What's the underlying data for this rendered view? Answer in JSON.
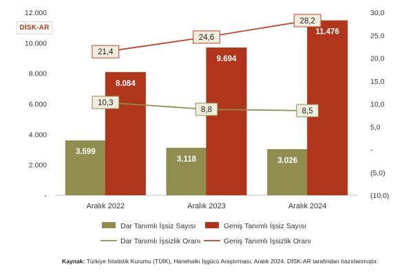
{
  "logo_text": "DİSK-AR",
  "source": {
    "label": "Kaynak:",
    "text": " Türkiye İstatistik Kurumu (TÜİK), Hanehalkı İşgücü Araştırması, Aralık 2024. DİSK-AR tarafından hazırlanmıştır."
  },
  "chart_data": {
    "type": "bar",
    "categories": [
      "Aralık 2022",
      "Aralık 2023",
      "Aralık 2024"
    ],
    "series": [
      {
        "name": "Dar Tanımlı İşsiz Sayısı",
        "type": "bar",
        "axis": "left",
        "color": "#8f8e4f",
        "values": [
          3599,
          3118,
          3026
        ],
        "labels": [
          "3.599",
          "3.118",
          "3.026"
        ]
      },
      {
        "name": "Geniş Tanımlı İşsiz Sayısı",
        "type": "bar",
        "axis": "left",
        "color": "#b0361b",
        "values": [
          8084,
          9694,
          11476
        ],
        "labels": [
          "8.084",
          "9.694",
          "11.476"
        ]
      },
      {
        "name": "Dar Tanımlı İşsizlik Oranı",
        "type": "line",
        "axis": "right",
        "color": "#8f8e4f",
        "values": [
          10.3,
          8.8,
          8.5
        ],
        "labels": [
          "10,3",
          "8,8",
          "8,5"
        ]
      },
      {
        "name": "Geniş Tanımlı İşsizlik Oranı",
        "type": "line",
        "axis": "right",
        "color": "#c8402a",
        "values": [
          21.4,
          24.6,
          28.2
        ],
        "labels": [
          "21,4",
          "24,6",
          "28,2"
        ]
      }
    ],
    "left_axis": {
      "min": 0,
      "max": 12000,
      "ticks": [
        0,
        2000,
        4000,
        6000,
        8000,
        10000,
        12000
      ],
      "tick_labels": [
        "-",
        "2.000",
        "4.000",
        "6.000",
        "8.000",
        "10.000",
        "12.000"
      ]
    },
    "right_axis": {
      "min": -10,
      "max": 30,
      "ticks": [
        -10,
        -5,
        0,
        5,
        10,
        15,
        20,
        25,
        30
      ],
      "tick_labels": [
        "(10,0)",
        "(5,0)",
        "-",
        "5,0",
        "10,0",
        "15,0",
        "20,0",
        "25,0",
        "30,0"
      ]
    },
    "grid": false,
    "legend_position": "bottom"
  }
}
